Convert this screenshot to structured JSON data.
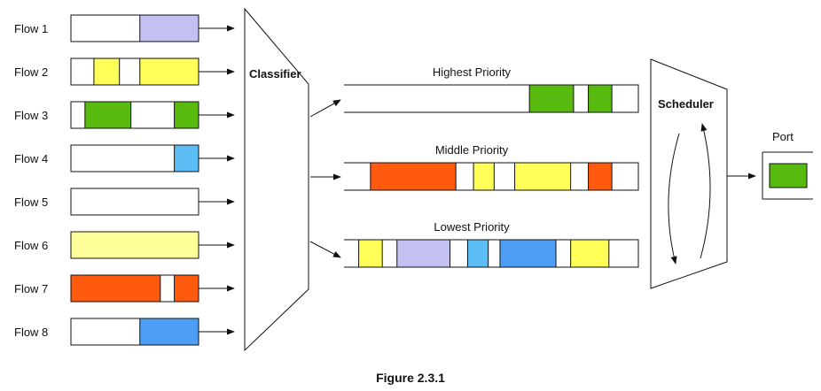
{
  "colors": {
    "lavender": "#c3c0f2",
    "yellow": "#ffff57",
    "green": "#58b90f",
    "sky": "#5cbdf4",
    "paleyellow": "#ffff99",
    "orange": "#ff5a0d",
    "blue": "#4d9ef4",
    "white": "#ffffff"
  },
  "flows": [
    {
      "label": "Flow 1",
      "segments": [
        {
          "from": 0.54,
          "to": 1.0,
          "color": "lavender"
        }
      ]
    },
    {
      "label": "Flow 2",
      "segments": [
        {
          "from": 0.18,
          "to": 0.38,
          "color": "yellow"
        },
        {
          "from": 0.54,
          "to": 1.0,
          "color": "yellow"
        }
      ]
    },
    {
      "label": "Flow 3",
      "segments": [
        {
          "from": 0.11,
          "to": 0.47,
          "color": "green"
        },
        {
          "from": 0.81,
          "to": 1.0,
          "color": "green"
        }
      ]
    },
    {
      "label": "Flow 4",
      "segments": [
        {
          "from": 0.81,
          "to": 1.0,
          "color": "sky"
        }
      ]
    },
    {
      "label": "Flow 5",
      "segments": []
    },
    {
      "label": "Flow 6",
      "segments": [
        {
          "from": 0.0,
          "to": 1.0,
          "color": "paleyellow"
        }
      ]
    },
    {
      "label": "Flow 7",
      "segments": [
        {
          "from": 0.0,
          "to": 0.7,
          "color": "orange"
        },
        {
          "from": 0.81,
          "to": 1.0,
          "color": "orange"
        }
      ]
    },
    {
      "label": "Flow 8",
      "segments": [
        {
          "from": 0.54,
          "to": 1.0,
          "color": "blue"
        }
      ]
    }
  ],
  "classifier": {
    "label": "Classifier"
  },
  "queues": [
    {
      "label": "Highest Priority",
      "segments": [
        {
          "from": 0.63,
          "to": 0.78,
          "color": "green"
        },
        {
          "from": 0.83,
          "to": 0.91,
          "color": "green"
        }
      ]
    },
    {
      "label": "Middle Priority",
      "segments": [
        {
          "from": 0.09,
          "to": 0.38,
          "color": "orange"
        },
        {
          "from": 0.44,
          "to": 0.51,
          "color": "yellow"
        },
        {
          "from": 0.58,
          "to": 0.77,
          "color": "yellow"
        },
        {
          "from": 0.83,
          "to": 0.91,
          "color": "orange"
        }
      ]
    },
    {
      "label": "Lowest Priority",
      "segments": [
        {
          "from": 0.05,
          "to": 0.13,
          "color": "yellow"
        },
        {
          "from": 0.18,
          "to": 0.36,
          "color": "lavender"
        },
        {
          "from": 0.42,
          "to": 0.49,
          "color": "sky"
        },
        {
          "from": 0.53,
          "to": 0.72,
          "color": "blue"
        },
        {
          "from": 0.77,
          "to": 0.9,
          "color": "yellow"
        }
      ]
    }
  ],
  "scheduler": {
    "label": "Scheduler"
  },
  "port": {
    "label": "Port",
    "color": "green"
  },
  "caption": "Figure 2.3.1"
}
